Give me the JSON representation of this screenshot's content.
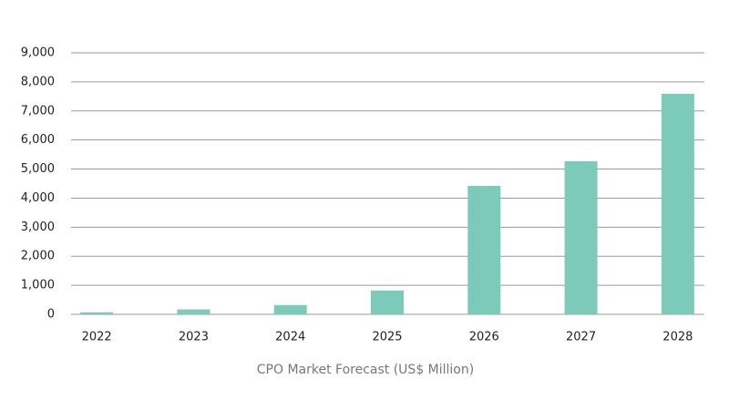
{
  "chart_data": {
    "type": "bar",
    "title": "CPO Market Forecast (US$ Million)",
    "categories": [
      "2022",
      "2023",
      "2024",
      "2025",
      "2026",
      "2027",
      "2028"
    ],
    "values": [
      70,
      170,
      320,
      820,
      4420,
      5270,
      7590
    ],
    "color": "#7ccab9",
    "ylim": [
      0,
      9000
    ],
    "yticks": [
      0,
      {
        "value": 1000,
        "label": "1,000"
      },
      {
        "value": 2000,
        "label": "2,000"
      },
      {
        "value": 3000,
        "label": "3,000"
      },
      {
        "value": 4000,
        "label": "4,000"
      },
      {
        "value": 5000,
        "label": "5,000"
      },
      {
        "value": 6000,
        "label": "6,000"
      },
      {
        "value": 7000,
        "label": "7,000"
      },
      {
        "value": 8000,
        "label": "8,000"
      },
      {
        "value": 9000,
        "label": "9,000"
      }
    ],
    "grid": true
  }
}
